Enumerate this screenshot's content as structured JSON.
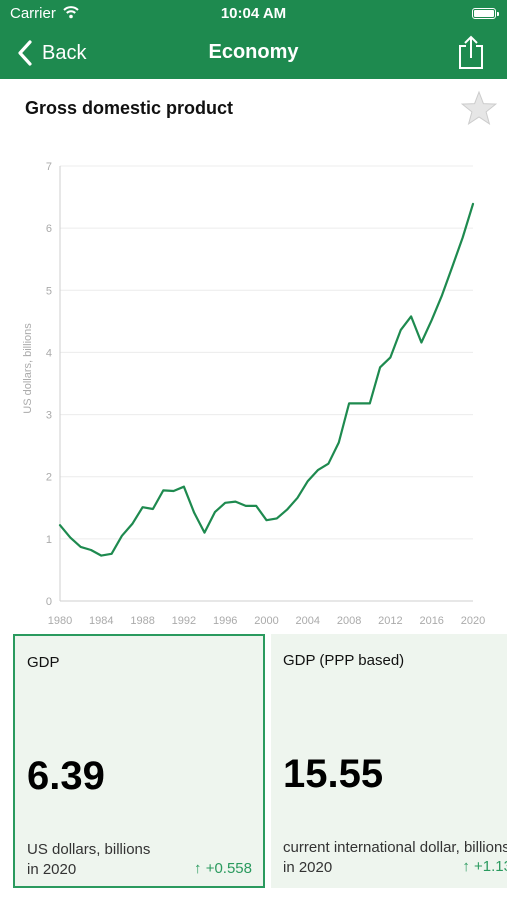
{
  "status_bar": {
    "carrier": "Carrier",
    "time": "10:04 AM"
  },
  "nav": {
    "back_label": "Back",
    "title": "Economy"
  },
  "page": {
    "title": "Gross domestic product"
  },
  "colors": {
    "brand": "#1e8a4f",
    "line": "#1e8a4f",
    "accent": "#2a9a5e",
    "card_bg": "#eef5ee"
  },
  "chart_data": {
    "type": "line",
    "title": "",
    "xlabel": "",
    "ylabel": "US dollars, billions",
    "xlim": [
      1980,
      2020
    ],
    "ylim": [
      0,
      7
    ],
    "yticks": [
      0,
      1,
      2,
      3,
      4,
      5,
      6,
      7
    ],
    "xticks": [
      1980,
      1984,
      1988,
      1992,
      1996,
      2000,
      2004,
      2008,
      2012,
      2016,
      2020
    ],
    "grid": true,
    "series": [
      {
        "x": [
          1980,
          1981,
          1982,
          1983,
          1984,
          1985,
          1986,
          1987,
          1988,
          1989,
          1990,
          1991,
          1992,
          1993,
          1994,
          1995,
          1996,
          1997,
          1998,
          1999,
          2000,
          2001,
          2002,
          2003,
          2004,
          2005,
          2006,
          2007,
          2008,
          2009,
          2010,
          2011,
          2012,
          2013,
          2014,
          2015,
          2016,
          2017,
          2018,
          2019,
          2020
        ],
        "values": [
          1.22,
          1.02,
          0.87,
          0.82,
          0.73,
          0.76,
          1.05,
          1.24,
          1.51,
          1.48,
          1.78,
          1.77,
          1.84,
          1.42,
          1.1,
          1.43,
          1.58,
          1.6,
          1.53,
          1.53,
          1.3,
          1.33,
          1.47,
          1.66,
          1.93,
          2.11,
          2.21,
          2.55,
          3.18,
          3.18,
          3.18,
          3.76,
          3.92,
          4.36,
          4.58,
          4.16,
          4.52,
          4.92,
          5.38,
          5.85,
          6.39
        ]
      }
    ]
  },
  "cards": [
    {
      "title": "GDP",
      "value": "6.39",
      "unit": "US dollars, billions",
      "year": "in 2020",
      "change": "↑  +0.558",
      "selected": true
    },
    {
      "title": "GDP (PPP based)",
      "value": "15.55",
      "unit": "current international dollar, billions",
      "year": "in 2020",
      "change": "↑  +1.13",
      "selected": false
    }
  ]
}
